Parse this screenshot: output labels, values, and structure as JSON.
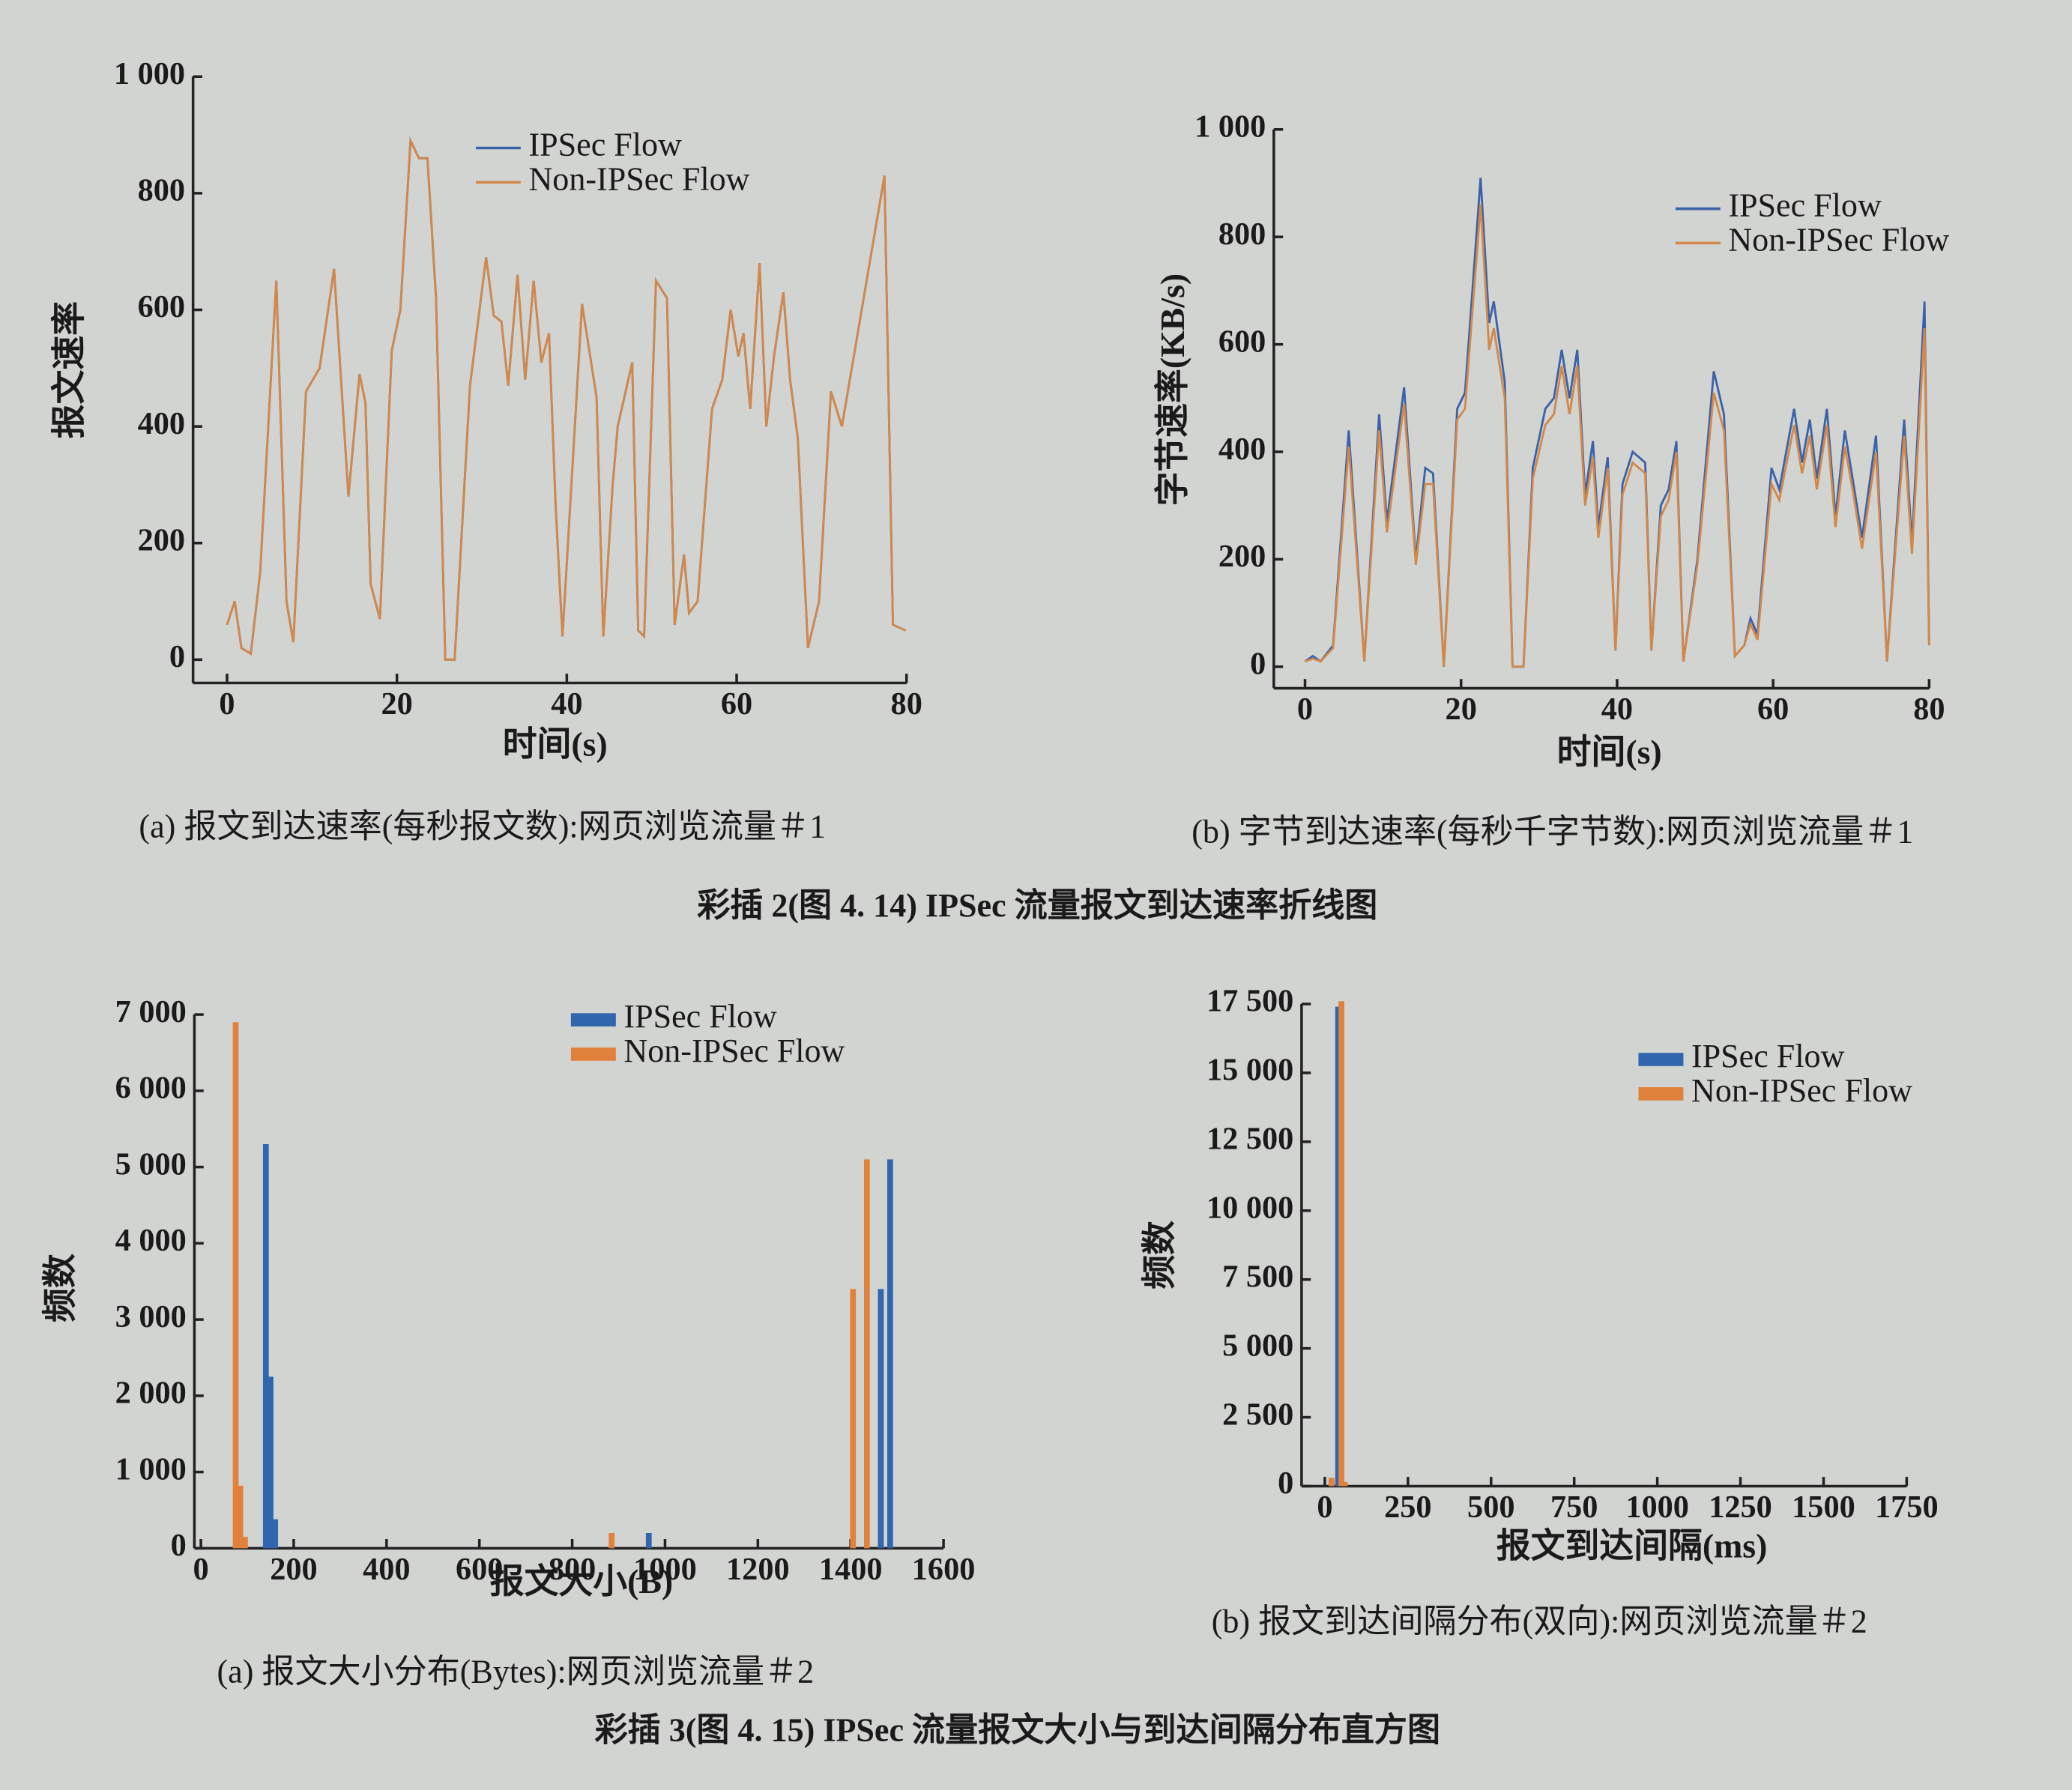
{
  "chart_data": [
    {
      "type": "line",
      "subtitle": "(a) 报文到达速率(每秒报文数):网页浏览流量＃1",
      "xlabel": "时间(s)",
      "ylabel": "报文速率",
      "x": [
        0,
        0.9,
        1.7,
        2.8,
        3.9,
        5.8,
        7.0,
        7.8,
        9.3,
        10.9,
        12.6,
        14.3,
        15.6,
        16.3,
        16.9,
        18.0,
        19.4,
        20.4,
        21.6,
        22.6,
        23.6,
        24.6,
        25.7,
        26.8,
        28.6,
        30.5,
        31.4,
        32.3,
        33.1,
        34.2,
        35.1,
        36.1,
        37.0,
        37.9,
        38.7,
        39.5,
        41.8,
        43.5,
        44.3,
        45.4,
        46.0,
        47.7,
        48.4,
        49.1,
        50.5,
        51.8,
        52.7,
        53.8,
        54.4,
        55.4,
        57.1,
        58.3,
        59.3,
        60.2,
        60.8,
        61.6,
        62.7,
        63.5,
        64.4,
        65.5,
        66.3,
        67.2,
        68.4,
        69.7,
        71.1,
        72.4,
        77.4,
        78.4,
        79.9
      ],
      "series": [
        {
          "name": "IPSec Flow",
          "color": "#3a62a8",
          "values": [
            60,
            100,
            20,
            10,
            150,
            650,
            100,
            30,
            460,
            500,
            670,
            280,
            490,
            440,
            130,
            70,
            530,
            600,
            890,
            860,
            860,
            620,
            0,
            0,
            470,
            690,
            590,
            580,
            470,
            660,
            480,
            650,
            510,
            560,
            260,
            40,
            610,
            450,
            40,
            300,
            400,
            510,
            50,
            40,
            650,
            620,
            60,
            180,
            80,
            100,
            430,
            480,
            600,
            520,
            560,
            430,
            680,
            400,
            520,
            630,
            480,
            380,
            20,
            100,
            460,
            400,
            830,
            60,
            50
          ]
        },
        {
          "name": "Non-IPSec Flow",
          "color": "#d3884a",
          "values": [
            60,
            100,
            20,
            10,
            150,
            650,
            100,
            30,
            460,
            500,
            670,
            280,
            490,
            440,
            130,
            70,
            530,
            600,
            890,
            860,
            860,
            620,
            0,
            0,
            470,
            690,
            590,
            580,
            470,
            660,
            480,
            650,
            510,
            560,
            260,
            40,
            610,
            450,
            40,
            300,
            400,
            510,
            50,
            40,
            650,
            620,
            60,
            180,
            80,
            100,
            430,
            480,
            600,
            520,
            560,
            430,
            680,
            400,
            520,
            630,
            480,
            380,
            20,
            100,
            460,
            400,
            830,
            60,
            50
          ]
        }
      ],
      "xlim": [
        -4,
        80
      ],
      "xticks": [
        0,
        20,
        40,
        60,
        80
      ],
      "ylim": [
        -40,
        1000
      ],
      "yticks": [
        0,
        200,
        400,
        600,
        800,
        {
          "value": 1000,
          "label": "1 000"
        }
      ],
      "legend": "upper center"
    },
    {
      "type": "line",
      "subtitle": "(b) 字节到达速率(每秒千字节数):网页浏览流量＃1",
      "xlabel": "时间(s)",
      "ylabel": "字节速率(KB/s)",
      "x": [
        0,
        1.0,
        2.0,
        3.6,
        5.6,
        7.6,
        9.5,
        10.5,
        12.7,
        14.2,
        15.4,
        16.4,
        17.8,
        19.5,
        20.5,
        22.5,
        23.6,
        24.2,
        25.6,
        26.6,
        28.0,
        29.2,
        30.8,
        31.9,
        32.9,
        33.9,
        34.9,
        35.9,
        36.9,
        37.6,
        38.8,
        39.8,
        40.7,
        42.0,
        43.6,
        44.4,
        45.6,
        46.6,
        47.6,
        48.5,
        50.3,
        52.4,
        53.7,
        55.1,
        56.3,
        57.1,
        58.0,
        59.8,
        60.8,
        62.7,
        63.7,
        64.7,
        65.6,
        66.9,
        68.0,
        69.2,
        70.2,
        71.4,
        73.2,
        74.6,
        76.8,
        77.8,
        79.4,
        80
      ],
      "series": [
        {
          "name": "IPSec Flow",
          "color": "#3a62a8",
          "values": [
            10,
            20,
            10,
            40,
            440,
            10,
            470,
            270,
            520,
            200,
            370,
            360,
            0,
            480,
            510,
            910,
            640,
            680,
            530,
            0,
            0,
            370,
            480,
            500,
            590,
            500,
            590,
            320,
            420,
            260,
            390,
            30,
            340,
            400,
            380,
            30,
            300,
            330,
            420,
            10,
            200,
            550,
            470,
            20,
            40,
            90,
            60,
            370,
            330,
            480,
            380,
            460,
            350,
            480,
            280,
            440,
            350,
            240,
            430,
            10,
            460,
            230,
            680,
            40
          ]
        },
        {
          "name": "Non-IPSec Flow",
          "color": "#d3884a",
          "values": [
            10,
            15,
            10,
            35,
            410,
            10,
            440,
            250,
            490,
            190,
            340,
            340,
            0,
            460,
            480,
            860,
            590,
            630,
            500,
            0,
            0,
            350,
            450,
            470,
            560,
            470,
            560,
            300,
            390,
            240,
            370,
            30,
            320,
            380,
            360,
            30,
            280,
            310,
            400,
            10,
            190,
            510,
            440,
            20,
            40,
            80,
            50,
            340,
            310,
            450,
            360,
            430,
            330,
            450,
            260,
            410,
            330,
            220,
            400,
            10,
            430,
            210,
            630,
            40
          ]
        }
      ],
      "xlim": [
        -4,
        80
      ],
      "xticks": [
        0,
        20,
        40,
        60,
        80
      ],
      "ylim": [
        -40,
        1000
      ],
      "yticks": [
        0,
        200,
        400,
        600,
        800,
        {
          "value": 1000,
          "label": "1 000"
        }
      ],
      "legend": "upper right"
    },
    {
      "type": "bar",
      "subtitle": "(a) 报文大小分布(Bytes):网页浏览流量＃2",
      "xlabel": "报文大小(B)",
      "ylabel": "频数",
      "x": [
        75,
        85,
        95,
        140,
        150,
        160,
        885,
        965,
        1405,
        1435,
        1465,
        1485
      ],
      "series": [
        {
          "name": "IPSec Flow",
          "color": "#2f66ad",
          "values": [
            0,
            0,
            0,
            5300,
            2250,
            380,
            0,
            200,
            0,
            0,
            3400,
            5100
          ]
        },
        {
          "name": "Non-IPSec Flow",
          "color": "#e0813c",
          "values": [
            6900,
            820,
            150,
            0,
            0,
            0,
            200,
            0,
            3400,
            5100,
            0,
            0
          ]
        }
      ],
      "xlim": [
        -14,
        1600
      ],
      "xticks": [
        0,
        200,
        400,
        600,
        800,
        1000,
        1200,
        1400,
        1600
      ],
      "ylim": [
        0,
        7000
      ],
      "yticks": [
        0,
        {
          "value": 1000,
          "label": "1 000"
        },
        {
          "value": 2000,
          "label": "2 000"
        },
        {
          "value": 3000,
          "label": "3 000"
        },
        {
          "value": 4000,
          "label": "4 000"
        },
        {
          "value": 5000,
          "label": "5 000"
        },
        {
          "value": 6000,
          "label": "6 000"
        },
        {
          "value": 7000,
          "label": "7 000"
        }
      ],
      "legend": "upper center"
    },
    {
      "type": "bar",
      "subtitle": "(b) 报文到达间隔分布(双向):网页浏览流量＃2",
      "xlabel": "报文到达间隔(ms)",
      "ylabel": "频数",
      "x": [
        20,
        40,
        50,
        60
      ],
      "series": [
        {
          "name": "IPSec Flow",
          "color": "#2f66ad",
          "values": [
            200,
            17400,
            0,
            100
          ]
        },
        {
          "name": "Non-IPSec Flow",
          "color": "#e0813c",
          "values": [
            300,
            0,
            17600,
            150
          ]
        }
      ],
      "xlim": [
        -70,
        1750
      ],
      "xticks": [
        0,
        250,
        500,
        750,
        1000,
        1250,
        1500,
        1750
      ],
      "ylim": [
        0,
        17500
      ],
      "yticks": [
        0,
        {
          "value": 2500,
          "label": "2 500"
        },
        {
          "value": 5000,
          "label": "5 000"
        },
        {
          "value": 7500,
          "label": "7 500"
        },
        {
          "value": 10000,
          "label": "10 000"
        },
        {
          "value": 12500,
          "label": "12 500"
        },
        {
          "value": 15000,
          "label": "15 000"
        },
        {
          "value": 17500,
          "label": "17 500"
        }
      ],
      "legend": "upper right"
    }
  ],
  "figure_titles": [
    "彩插 2(图 4. 14)  IPSec 流量报文到达速率折线图",
    "彩插 3(图 4. 15)  IPSec 流量报文大小与到达间隔分布直方图"
  ]
}
